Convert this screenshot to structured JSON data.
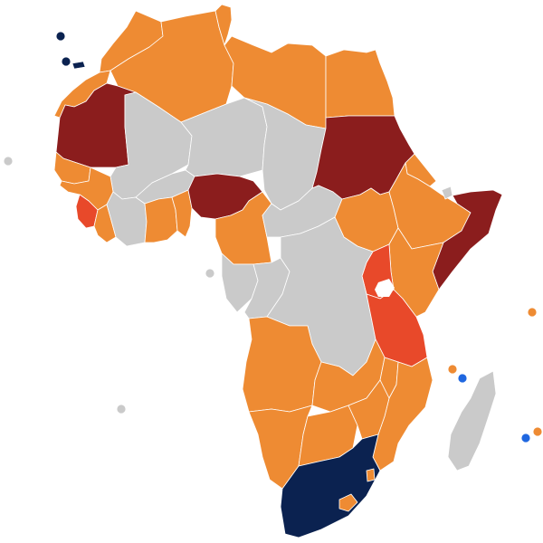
{
  "colors": {
    "orange": "#EE8B33",
    "grey": "#CACACA",
    "dark_red": "#8B1D1D",
    "red": "#E8492A",
    "navy": "#0B2250",
    "blue": "#1F67E0",
    "water": "#FFFFFF"
  },
  "regions": [
    {
      "name": "morocco",
      "category": "orange"
    },
    {
      "name": "algeria",
      "category": "orange"
    },
    {
      "name": "tunisia",
      "category": "orange"
    },
    {
      "name": "libya",
      "category": "orange"
    },
    {
      "name": "egypt",
      "category": "orange"
    },
    {
      "name": "western-sahara",
      "category": "orange"
    },
    {
      "name": "mauritania",
      "category": "dark_red"
    },
    {
      "name": "mali",
      "category": "grey"
    },
    {
      "name": "niger",
      "category": "grey"
    },
    {
      "name": "chad",
      "category": "grey"
    },
    {
      "name": "sudan",
      "category": "dark_red"
    },
    {
      "name": "senegal",
      "category": "orange"
    },
    {
      "name": "guinea",
      "category": "orange"
    },
    {
      "name": "sierra-leone",
      "category": "red"
    },
    {
      "name": "liberia",
      "category": "orange"
    },
    {
      "name": "ivory-coast",
      "category": "grey"
    },
    {
      "name": "burkina-faso",
      "category": "grey"
    },
    {
      "name": "ghana",
      "category": "orange"
    },
    {
      "name": "nigeria",
      "category": "dark_red"
    },
    {
      "name": "cameroon",
      "category": "orange"
    },
    {
      "name": "central-african-republic",
      "category": "grey"
    },
    {
      "name": "south-sudan",
      "category": "orange"
    },
    {
      "name": "ethiopia",
      "category": "orange"
    },
    {
      "name": "eritrea",
      "category": "orange"
    },
    {
      "name": "djibouti",
      "category": "grey"
    },
    {
      "name": "somalia",
      "category": "dark_red"
    },
    {
      "name": "kenya",
      "category": "orange"
    },
    {
      "name": "uganda",
      "category": "red"
    },
    {
      "name": "gabon",
      "category": "grey"
    },
    {
      "name": "congo",
      "category": "grey"
    },
    {
      "name": "dr-congo",
      "category": "grey"
    },
    {
      "name": "tanzania",
      "category": "red"
    },
    {
      "name": "angola",
      "category": "orange"
    },
    {
      "name": "zambia",
      "category": "orange"
    },
    {
      "name": "malawi",
      "category": "orange"
    },
    {
      "name": "mozambique",
      "category": "orange"
    },
    {
      "name": "namibia",
      "category": "orange"
    },
    {
      "name": "botswana",
      "category": "orange"
    },
    {
      "name": "zimbabwe",
      "category": "orange"
    },
    {
      "name": "south-africa",
      "category": "navy"
    },
    {
      "name": "lesotho",
      "category": "orange"
    },
    {
      "name": "eswatini",
      "category": "orange"
    },
    {
      "name": "madagascar",
      "category": "grey"
    }
  ],
  "island_markers": [
    {
      "name": "madeira",
      "category": "navy"
    },
    {
      "name": "canary-islands",
      "category": "navy"
    },
    {
      "name": "cape-verde",
      "category": "grey"
    },
    {
      "name": "sao-tome",
      "category": "grey"
    },
    {
      "name": "saint-helena",
      "category": "grey"
    },
    {
      "name": "seychelles",
      "category": "orange"
    },
    {
      "name": "comoros",
      "category": "orange"
    },
    {
      "name": "mayotte",
      "category": "blue"
    },
    {
      "name": "reunion",
      "category": "blue"
    },
    {
      "name": "mauritius",
      "category": "orange"
    }
  ]
}
